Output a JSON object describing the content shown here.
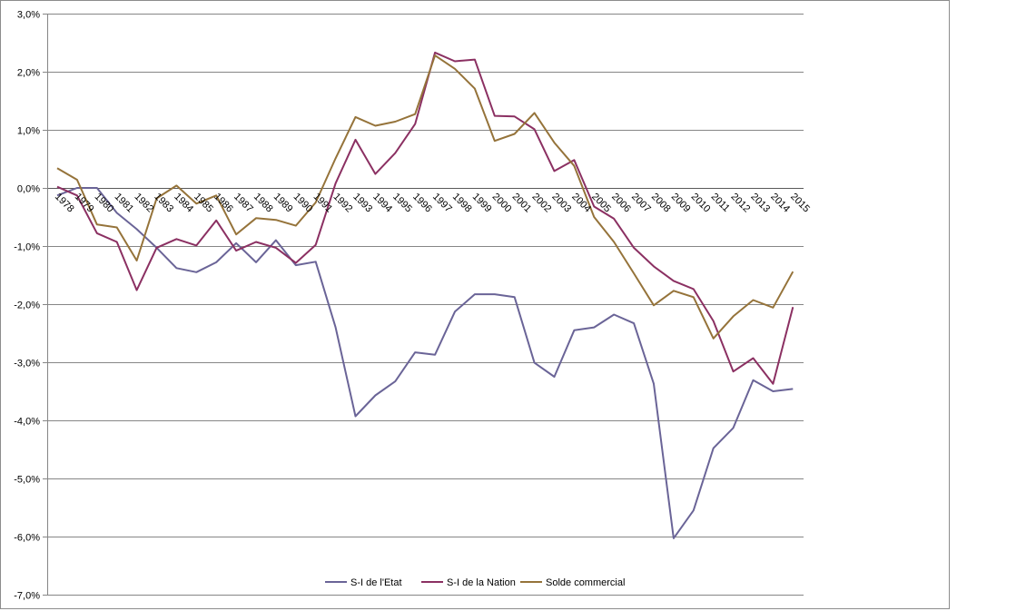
{
  "chart_data": {
    "type": "line",
    "title": "",
    "xlabel": "",
    "ylabel": "",
    "x": [
      "1978",
      "1979",
      "1980",
      "1981",
      "1982",
      "1983",
      "1984",
      "1985",
      "1986",
      "1987",
      "1988",
      "1989",
      "1990",
      "1991",
      "1992",
      "1993",
      "1994",
      "1995",
      "1996",
      "1997",
      "1998",
      "1999",
      "2000",
      "2001",
      "2002",
      "2003",
      "2004",
      "2005",
      "2006",
      "2007",
      "2008",
      "2009",
      "2010",
      "2011",
      "2012",
      "2013",
      "2014",
      "2015"
    ],
    "ylim": [
      -0.07,
      0.03
    ],
    "yticks": [
      0.03,
      0.02,
      0.01,
      0.0,
      -0.01,
      -0.02,
      -0.03,
      -0.04,
      -0.05,
      -0.06,
      -0.07
    ],
    "ytick_labels": [
      "3,0%",
      "2,0%",
      "1,0%",
      "0,0%",
      "-1,0%",
      "-2,0%",
      "-3,0%",
      "-4,0%",
      "-5,0%",
      "-6,0%",
      "-7,0%"
    ],
    "grid": true,
    "legend_position": "bottom",
    "series": [
      {
        "name": "S-I de l'Etat",
        "color": "#6a6497",
        "values": [
          -0.0013,
          0.0,
          0.0,
          -0.0043,
          -0.0071,
          -0.0103,
          -0.0138,
          -0.0145,
          -0.0128,
          -0.0095,
          -0.0128,
          -0.009,
          -0.0133,
          -0.0127,
          -0.024,
          -0.0393,
          -0.0357,
          -0.0333,
          -0.0283,
          -0.0287,
          -0.0213,
          -0.0183,
          -0.0183,
          -0.0188,
          -0.0301,
          -0.0325,
          -0.0245,
          -0.024,
          -0.0218,
          -0.0233,
          -0.0337,
          -0.0603,
          -0.0555,
          -0.0448,
          -0.0413,
          -0.0331,
          -0.035,
          -0.0346
        ]
      },
      {
        "name": "S-I de la Nation",
        "color": "#8b3062",
        "values": [
          0.0002,
          -0.0013,
          -0.0078,
          -0.0093,
          -0.0176,
          -0.0103,
          -0.0088,
          -0.0099,
          -0.0056,
          -0.0108,
          -0.0093,
          -0.0103,
          -0.0129,
          -0.0098,
          0.0008,
          0.0083,
          0.0024,
          0.006,
          0.011,
          0.0233,
          0.0218,
          0.0221,
          0.0124,
          0.0123,
          0.0101,
          0.0029,
          0.0048,
          -0.0032,
          -0.0053,
          -0.0103,
          -0.0135,
          -0.016,
          -0.0174,
          -0.0229,
          -0.0316,
          -0.0293,
          -0.0337,
          -0.0205
        ]
      },
      {
        "name": "Solde commercial",
        "color": "#95733a",
        "values": [
          0.0034,
          0.0014,
          -0.0063,
          -0.0068,
          -0.0125,
          -0.0018,
          0.0004,
          -0.0027,
          -0.0013,
          -0.008,
          -0.0052,
          -0.0055,
          -0.0065,
          -0.0025,
          0.0051,
          0.0122,
          0.0107,
          0.0114,
          0.0127,
          0.0228,
          0.0205,
          0.0171,
          0.0081,
          0.0093,
          0.0129,
          0.0078,
          0.0038,
          -0.005,
          -0.0093,
          -0.0147,
          -0.0202,
          -0.0177,
          -0.0188,
          -0.0259,
          -0.0221,
          -0.0193,
          -0.0206,
          -0.0144
        ]
      }
    ]
  }
}
